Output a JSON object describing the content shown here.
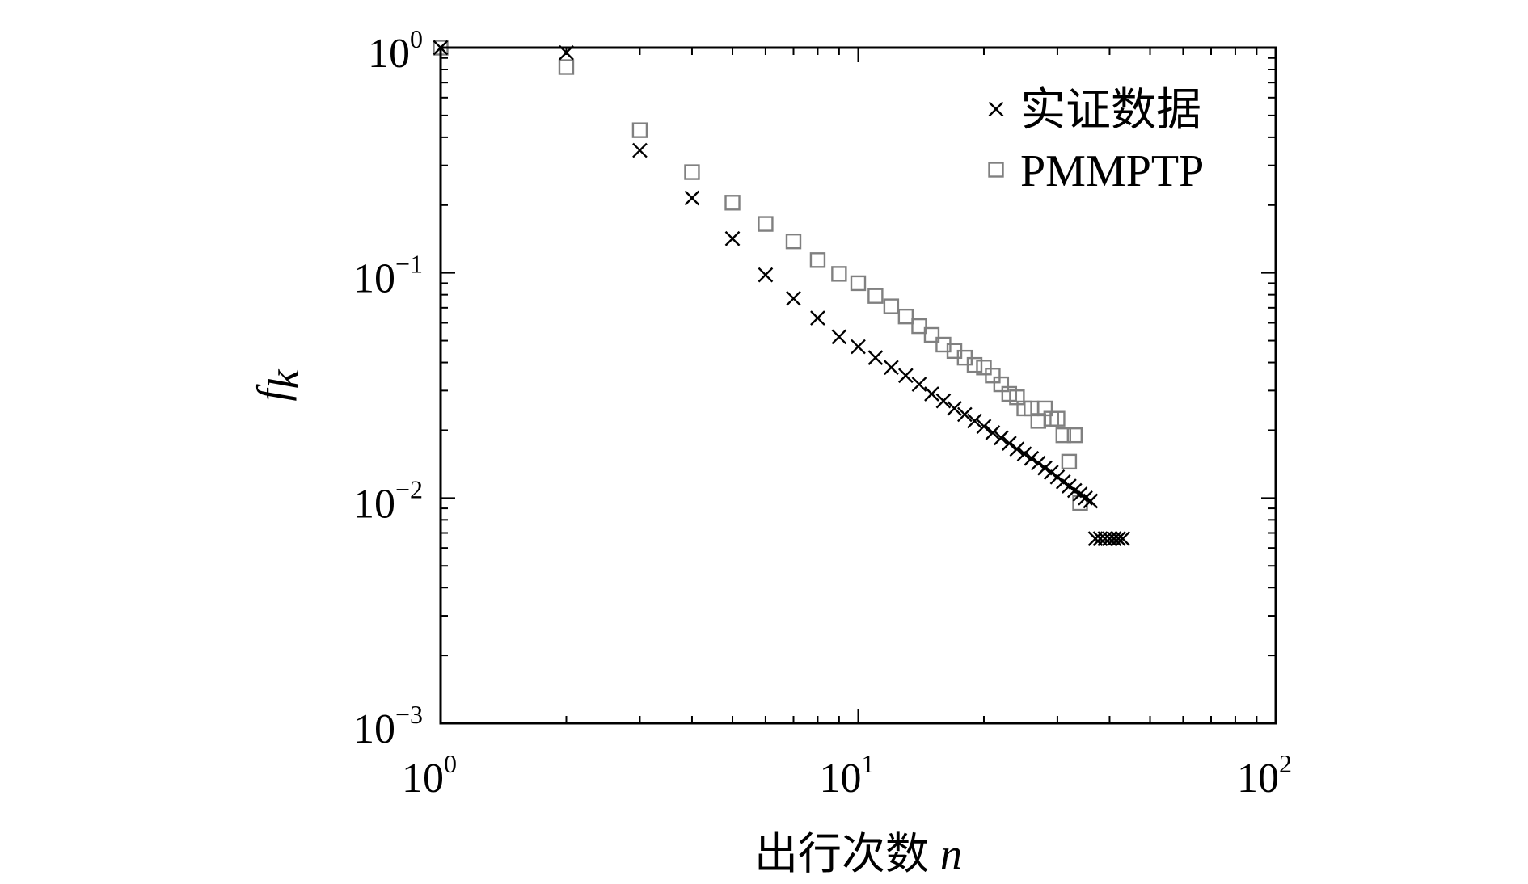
{
  "chart_data": {
    "type": "scatter",
    "title": "",
    "xlabel": "出行次数",
    "xlabel_var": "n",
    "ylabel_main": "f",
    "ylabel_sub": "k",
    "xscale": "log",
    "yscale": "log",
    "xlim": [
      1,
      100
    ],
    "ylim": [
      0.001,
      1
    ],
    "grid": false,
    "legend_position": "top-right",
    "x_ticks": [
      {
        "base": "10",
        "exp": "0"
      },
      {
        "base": "10",
        "exp": "1"
      },
      {
        "base": "10",
        "exp": "2"
      }
    ],
    "y_ticks": [
      {
        "base": "10",
        "exp": "0"
      },
      {
        "base": "10",
        "exp": "−1"
      },
      {
        "base": "10",
        "exp": "−2"
      },
      {
        "base": "10",
        "exp": "−3"
      }
    ],
    "series": [
      {
        "name": "实证数据",
        "marker": "x",
        "color": "#000000",
        "x": [
          1,
          2,
          3,
          4,
          5,
          6,
          7,
          8,
          9,
          10,
          11,
          12,
          13,
          14,
          15,
          16,
          17,
          18,
          19,
          20,
          21,
          22,
          23,
          24,
          25,
          26,
          27,
          28,
          29,
          30,
          31,
          32,
          33,
          34,
          35,
          36,
          37,
          38,
          39,
          40,
          41,
          42,
          43
        ],
        "y": [
          1.0,
          0.95,
          0.35,
          0.215,
          0.142,
          0.098,
          0.077,
          0.063,
          0.052,
          0.047,
          0.042,
          0.038,
          0.035,
          0.032,
          0.029,
          0.027,
          0.025,
          0.0235,
          0.022,
          0.0208,
          0.0195,
          0.0185,
          0.0175,
          0.0165,
          0.0157,
          0.015,
          0.0143,
          0.0136,
          0.013,
          0.0124,
          0.0118,
          0.0113,
          0.0108,
          0.0104,
          0.01,
          0.0097,
          0.0066,
          0.0066,
          0.0066,
          0.0066,
          0.0066,
          0.0066,
          0.0066
        ]
      },
      {
        "name": "PMMPTP",
        "marker": "square",
        "color": "#808080",
        "x": [
          1,
          2,
          3,
          4,
          5,
          6,
          7,
          8,
          9,
          10,
          11,
          12,
          13,
          14,
          15,
          16,
          17,
          18,
          19,
          20,
          21,
          22,
          23,
          24,
          25,
          26,
          27,
          28,
          29,
          30,
          31,
          32,
          33,
          34
        ],
        "y": [
          1.0,
          0.82,
          0.43,
          0.28,
          0.205,
          0.165,
          0.138,
          0.114,
          0.099,
          0.09,
          0.079,
          0.071,
          0.064,
          0.058,
          0.053,
          0.048,
          0.045,
          0.042,
          0.039,
          0.038,
          0.035,
          0.032,
          0.029,
          0.028,
          0.025,
          0.025,
          0.022,
          0.025,
          0.0225,
          0.0225,
          0.019,
          0.0145,
          0.019,
          0.0095
        ]
      }
    ]
  }
}
